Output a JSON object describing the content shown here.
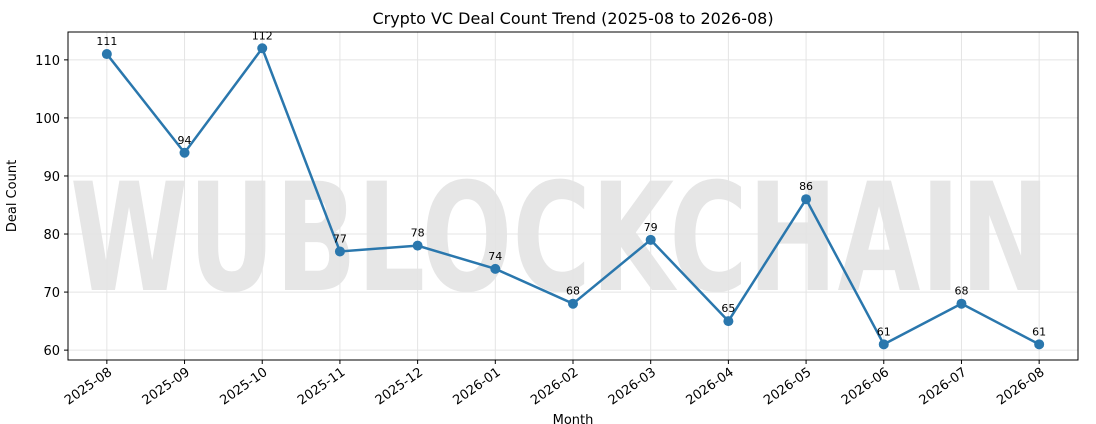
{
  "chart_data": {
    "type": "line",
    "title": "Crypto VC Deal Count Trend (2025-08 to 2026-08)",
    "x_label": "Month",
    "y_label": "Deal Count",
    "watermark": "WUBLOCKCHAIN",
    "categories": [
      "2025-08",
      "2025-09",
      "2025-10",
      "2025-11",
      "2025-12",
      "2026-01",
      "2026-02",
      "2026-03",
      "2026-04",
      "2026-05",
      "2026-06",
      "2026-07",
      "2026-08"
    ],
    "series": [
      {
        "name": "Deal Count",
        "color": "#2a77ad",
        "values": [
          111,
          94,
          112,
          77,
          78,
          74,
          68,
          79,
          65,
          86,
          61,
          68,
          61
        ]
      }
    ],
    "ylim": [
      58.3,
      114.8
    ],
    "yticks": [
      60,
      70,
      80,
      90,
      100,
      110
    ],
    "grid": true
  }
}
